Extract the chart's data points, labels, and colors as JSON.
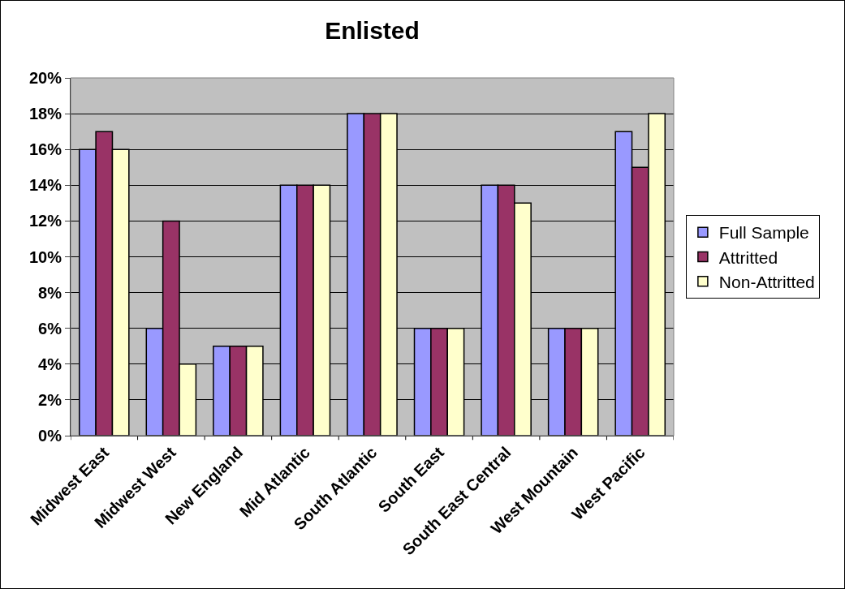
{
  "chart_data": {
    "type": "bar",
    "title": "Enlisted",
    "categories": [
      "Midwest East",
      "Midwest West",
      "New England",
      "Mid Atlantic",
      "South Atlantic",
      "South East",
      "South East Central",
      "West Mountain",
      "West Pacific"
    ],
    "series": [
      {
        "name": "Full Sample",
        "color": "#9999ff",
        "values": [
          16,
          6,
          5,
          14,
          18,
          6,
          14,
          6,
          17
        ]
      },
      {
        "name": "Attritted",
        "color": "#993366",
        "values": [
          17,
          12,
          5,
          14,
          18,
          6,
          14,
          6,
          15
        ]
      },
      {
        "name": "Non-Attritted",
        "color": "#ffffcc",
        "values": [
          16,
          4,
          5,
          14,
          18,
          6,
          13,
          6,
          18
        ]
      }
    ],
    "ylim": [
      0,
      20
    ],
    "yticks": [
      {
        "value": 0,
        "label": "0%"
      },
      {
        "value": 2,
        "label": "2%"
      },
      {
        "value": 4,
        "label": "4%"
      },
      {
        "value": 6,
        "label": "6%"
      },
      {
        "value": 8,
        "label": "8%"
      },
      {
        "value": 10,
        "label": "10%"
      },
      {
        "value": 12,
        "label": "12%"
      },
      {
        "value": 14,
        "label": "14%"
      },
      {
        "value": 16,
        "label": "16%"
      },
      {
        "value": 18,
        "label": "18%"
      },
      {
        "value": 20,
        "label": "20%"
      }
    ],
    "grid": "y",
    "legend": "right"
  }
}
